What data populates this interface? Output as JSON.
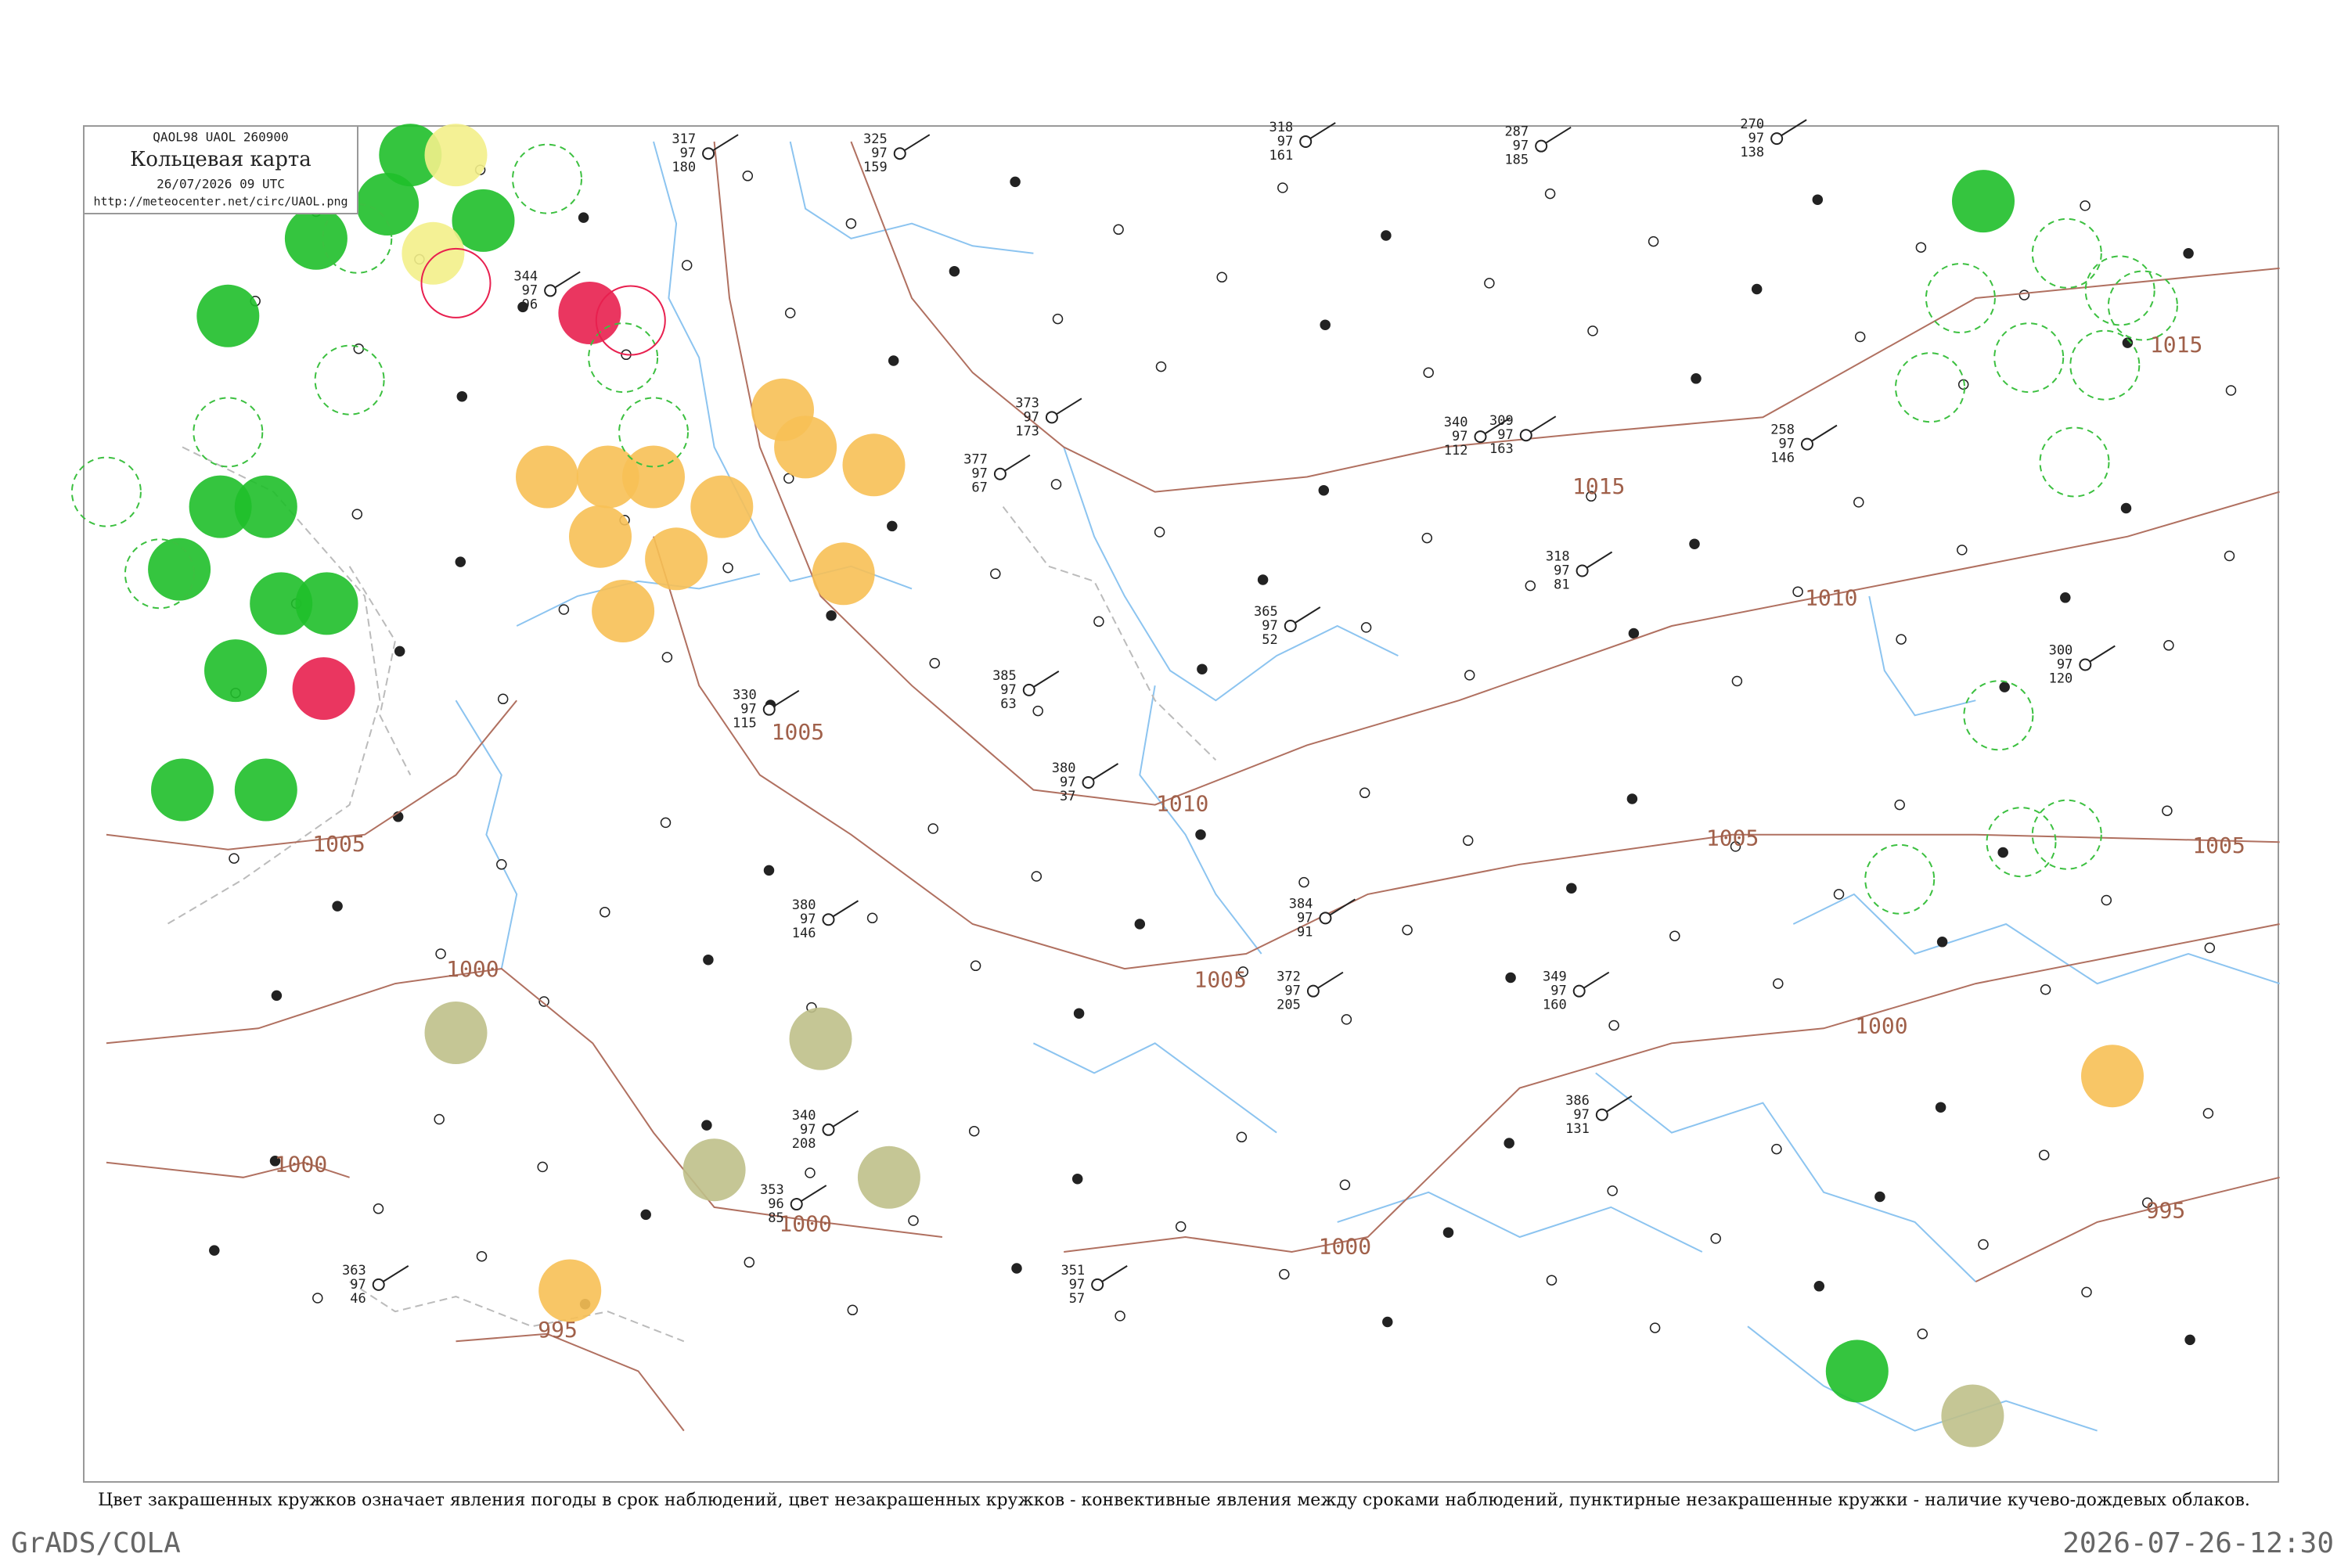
{
  "header": {
    "codes": "QAOL98  UAOL  260900",
    "title": "Кольцевая карта",
    "time": "26/07/2026 09 UTC",
    "url": "http://meteocenter.net/circ/UAOL.png"
  },
  "isobars": [
    "1015",
    "1015",
    "1010",
    "1010",
    "1005",
    "1005",
    "1005",
    "1005",
    "1005",
    "1000",
    "1000",
    "1000",
    "1000",
    "1000",
    "995",
    "995"
  ],
  "stations": [
    {
      "p": "344",
      "t": "97",
      "v": "96"
    },
    {
      "p": "317",
      "t": "97",
      "v": "180"
    },
    {
      "p": "325",
      "t": "97",
      "v": "159"
    },
    {
      "p": "318",
      "t": "97",
      "v": "161"
    },
    {
      "p": "287",
      "t": "97",
      "v": "185"
    },
    {
      "p": "270",
      "t": "97",
      "v": "138"
    },
    {
      "p": "377",
      "t": "97",
      "v": "67"
    },
    {
      "p": "373",
      "t": "97",
      "v": "173"
    },
    {
      "p": "340",
      "t": "97",
      "v": "112"
    },
    {
      "p": "309",
      "t": "97",
      "v": "163"
    },
    {
      "p": "258",
      "t": "97",
      "v": "146"
    },
    {
      "p": "318",
      "t": "97",
      "v": "81"
    },
    {
      "p": "385",
      "t": "97",
      "v": "63"
    },
    {
      "p": "380",
      "t": "97",
      "v": "37"
    },
    {
      "p": "384",
      "t": "97",
      "v": "91"
    },
    {
      "p": "372",
      "t": "97",
      "v": "205"
    },
    {
      "p": "365",
      "t": "97",
      "v": "52"
    },
    {
      "p": "349",
      "t": "97",
      "v": "160"
    },
    {
      "p": "300",
      "t": "97",
      "v": "120"
    },
    {
      "p": "386",
      "t": "97",
      "v": "131"
    },
    {
      "p": "380",
      "t": "97",
      "v": "146"
    },
    {
      "p": "340",
      "t": "97",
      "v": "208"
    },
    {
      "p": "353",
      "t": "96",
      "v": "85"
    },
    {
      "p": "351",
      "t": "97",
      "v": "57"
    },
    {
      "p": "363",
      "t": "97",
      "v": "46"
    },
    {
      "p": "330",
      "t": "97",
      "v": "115"
    }
  ],
  "caption": "Цвет закрашенных кружков означает явления погоды в срок наблюдений, цвет незакрашенных кружков - конвективные явления между сроками наблюдений, пунктирные незакрашенные кружки - наличие кучево-дождевых облаков.",
  "footer": {
    "left": "GrADS/COLA",
    "right": "2026-07-26-12:30"
  }
}
